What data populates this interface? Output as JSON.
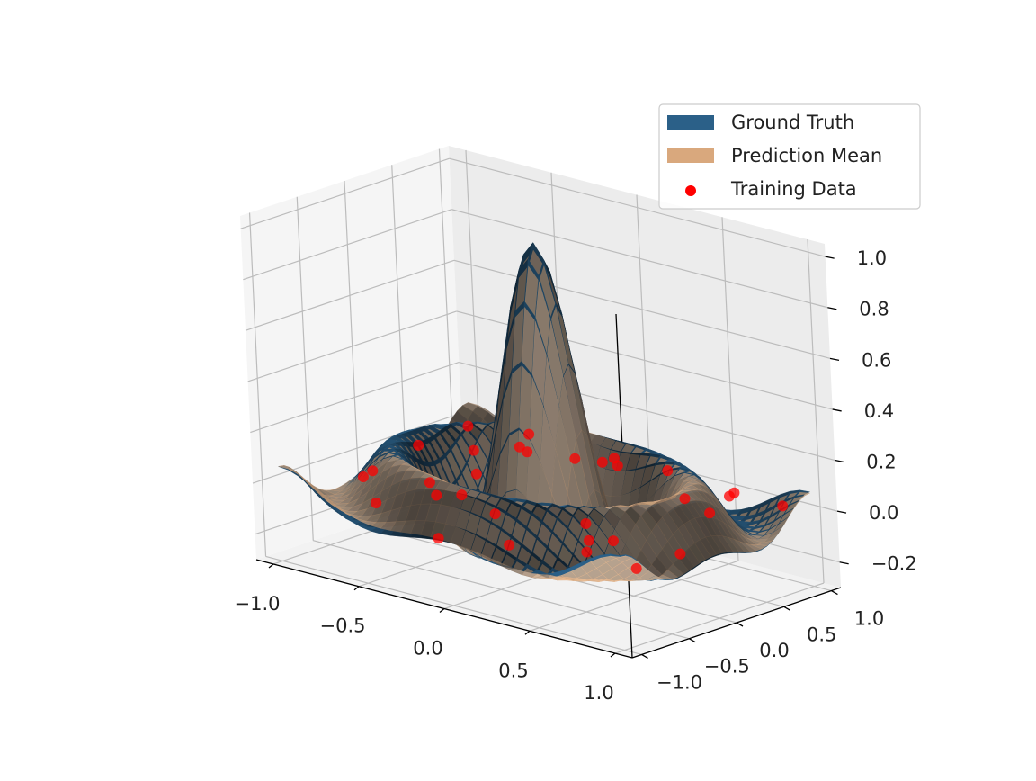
{
  "chart_data": {
    "type": "surface3d",
    "title": "",
    "xlabel": "",
    "ylabel": "",
    "zlabel": "",
    "xlim": [
      -1.1,
      1.1
    ],
    "ylim": [
      -1.1,
      1.1
    ],
    "zlim": [
      -0.3,
      1.05
    ],
    "x_ticks": [
      -1.0,
      -0.5,
      0.0,
      0.5,
      1.0
    ],
    "y_ticks": [
      -1.0,
      -0.5,
      0.0,
      0.5,
      1.0
    ],
    "z_ticks": [
      -0.2,
      0.0,
      0.2,
      0.4,
      0.6,
      0.8,
      1.0
    ],
    "x_tick_labels": [
      "−1.0",
      "−0.5",
      "0.0",
      "0.5",
      "1.0"
    ],
    "y_tick_labels": [
      "−1.0",
      "−0.5",
      "0.0",
      "0.5",
      "1.0"
    ],
    "z_tick_labels": [
      "−0.2",
      "0.0",
      "0.2",
      "0.4",
      "0.6",
      "0.8",
      "1.0"
    ],
    "grid": true,
    "legend_position": "top-right",
    "series": [
      {
        "name": "Ground Truth",
        "kind": "surface",
        "function": "sinc(r) = sin(10r)/(10r)",
        "color": "#2b6088"
      },
      {
        "name": "Prediction Mean",
        "kind": "surface",
        "function": "approximately sinc(r)",
        "color": "#d9a87d"
      },
      {
        "name": "Training Data",
        "kind": "scatter",
        "color": "#ff0000",
        "x": [
          -0.95,
          -0.82,
          -0.62,
          -0.45,
          -0.28,
          -0.12,
          0.05,
          0.22,
          0.4,
          0.58,
          0.75,
          0.92,
          -0.9,
          -0.7,
          -0.5,
          -0.3,
          -0.1,
          0.1,
          0.3,
          0.52,
          0.7,
          0.9,
          -0.85,
          -0.55,
          -0.2,
          0.15,
          0.45,
          0.8,
          0.95,
          -0.35,
          0.62,
          -0.65
        ],
        "y": [
          0.9,
          0.72,
          0.95,
          0.55,
          0.82,
          0.98,
          0.65,
          0.9,
          0.75,
          0.95,
          0.6,
          0.85,
          -0.3,
          -0.55,
          -0.88,
          -0.6,
          -0.95,
          -0.7,
          -0.92,
          -0.5,
          -0.82,
          -0.2,
          0.2,
          0.1,
          -0.35,
          0.35,
          -0.1,
          0.3,
          -0.75,
          0.45,
          -0.65,
          -0.05
        ],
        "z": [
          0.0,
          -0.05,
          0.02,
          0.05,
          0.0,
          -0.02,
          0.08,
          0.03,
          -0.03,
          0.0,
          0.06,
          0.02,
          -0.04,
          0.05,
          0.0,
          0.03,
          -0.06,
          0.04,
          -0.02,
          0.05,
          0.01,
          -0.04,
          0.03,
          -0.1,
          0.1,
          0.12,
          -0.08,
          0.04,
          -0.02,
          0.06,
          0.02,
          -0.05
        ]
      }
    ]
  }
}
